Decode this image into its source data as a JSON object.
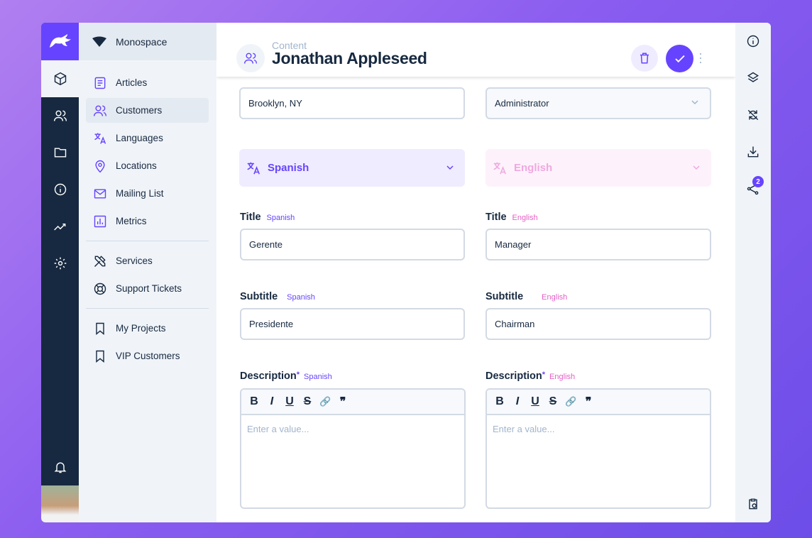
{
  "project": "Monospace",
  "nav": [
    {
      "label": "Articles",
      "icon": "article-icon"
    },
    {
      "label": "Customers",
      "icon": "users-icon"
    },
    {
      "label": "Languages",
      "icon": "translate-icon"
    },
    {
      "label": "Locations",
      "icon": "location-icon"
    },
    {
      "label": "Mailing List",
      "icon": "mail-icon"
    },
    {
      "label": "Metrics",
      "icon": "chart-icon"
    },
    {
      "label": "Services",
      "icon": "tools-icon"
    },
    {
      "label": "Support Tickets",
      "icon": "support-icon"
    },
    {
      "label": "My Projects",
      "icon": "bookmark-icon"
    },
    {
      "label": "VIP Customers",
      "icon": "bookmark-icon"
    }
  ],
  "header": {
    "breadcrumb": "Content",
    "title": "Jonathan Appleseed"
  },
  "form": {
    "location": "Brooklyn, NY",
    "role": "Administrator",
    "lang_left": "Spanish",
    "lang_right": "English",
    "title_label": "Title",
    "subtitle_label": "Subtitle",
    "description_label": "Description",
    "required_mark": "*",
    "tag_left": "Spanish",
    "tag_right": "English",
    "title_left": "Gerente",
    "title_right": "Manager",
    "subtitle_left": "Presidente",
    "subtitle_right": "Chairman",
    "placeholder": "Enter a value...",
    "toolbar": [
      "B",
      "I",
      "U",
      "S",
      "🔗",
      "❞"
    ]
  },
  "sidebar_right": {
    "share_badge": "2"
  },
  "colors": {
    "accent": "#6644ff",
    "rail": "#172940",
    "english": "#e35fc4"
  }
}
